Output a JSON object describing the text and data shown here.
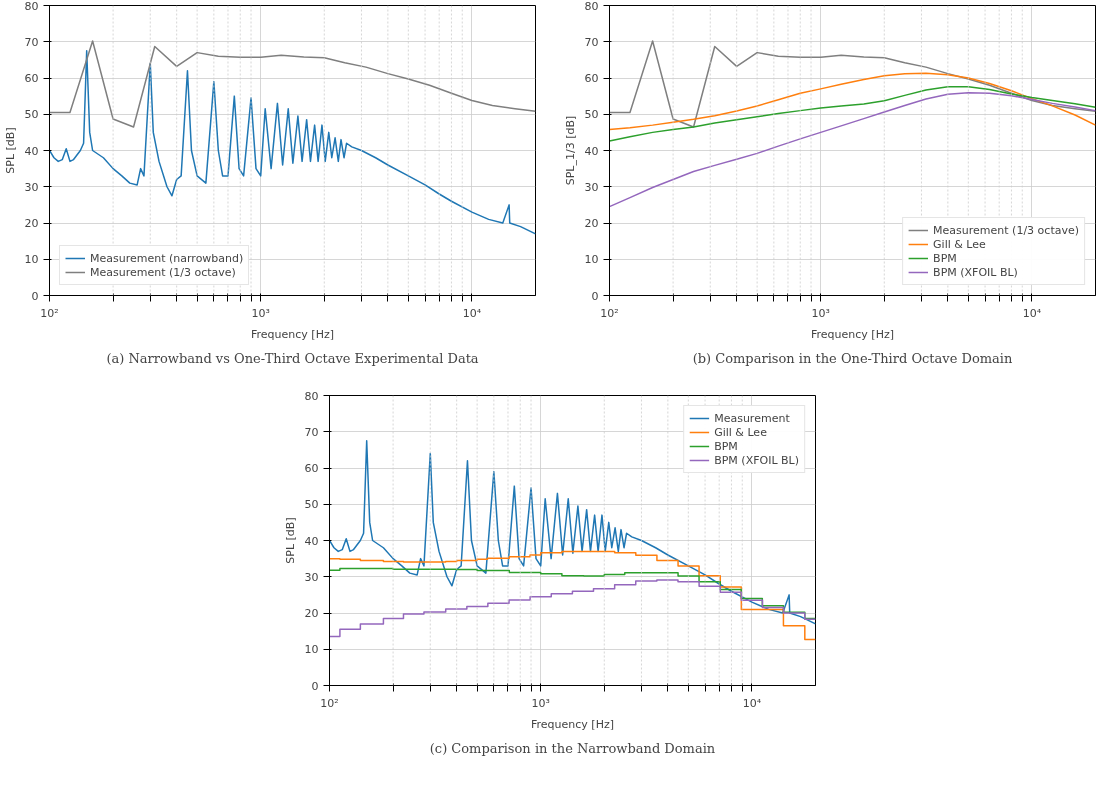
{
  "chart_data": [
    {
      "type": "line",
      "title": "(a) Narrowband vs One-Third Octave Experimental Data",
      "xlabel": "Frequency [Hz]",
      "ylabel": "SPL [dB]",
      "log": "x",
      "grid": true,
      "legend": "bottom left",
      "xlim": [
        100,
        20000
      ],
      "ylim": [
        0,
        80
      ],
      "xticks": [
        {
          "value": 100,
          "label": "10²"
        },
        {
          "value": 200,
          "label": null
        },
        {
          "value": 300,
          "label": null
        },
        {
          "value": 400,
          "label": null
        },
        {
          "value": 500,
          "label": null
        },
        {
          "value": 600,
          "label": null
        },
        {
          "value": 700,
          "label": null
        },
        {
          "value": 800,
          "label": null
        },
        {
          "value": 900,
          "label": null
        },
        {
          "value": 1000,
          "label": "10³"
        },
        {
          "value": 2000,
          "label": null
        },
        {
          "value": 3000,
          "label": null
        },
        {
          "value": 4000,
          "label": null
        },
        {
          "value": 5000,
          "label": null
        },
        {
          "value": 6000,
          "label": null
        },
        {
          "value": 7000,
          "label": null
        },
        {
          "value": 8000,
          "label": null
        },
        {
          "value": 9000,
          "label": null
        },
        {
          "value": 10000,
          "label": "10⁴"
        }
      ],
      "yticks": [
        0,
        10,
        20,
        30,
        40,
        50,
        60,
        70,
        80
      ],
      "series": [
        {
          "name": "Measurement (narrowband)",
          "color": "#1f77b4",
          "x": [
            100,
            105,
            110,
            115,
            120,
            125,
            130,
            140,
            145,
            150,
            155,
            160,
            180,
            200,
            220,
            240,
            260,
            270,
            280,
            300,
            310,
            330,
            360,
            380,
            400,
            420,
            450,
            470,
            500,
            550,
            600,
            630,
            660,
            700,
            750,
            790,
            830,
            900,
            950,
            1000,
            1050,
            1120,
            1200,
            1270,
            1350,
            1420,
            1500,
            1570,
            1650,
            1720,
            1800,
            1870,
            1950,
            2020,
            2100,
            2170,
            2250,
            2330,
            2400,
            2480,
            2550,
            2700,
            3000,
            3500,
            4000,
            5000,
            6000,
            7000,
            8000,
            10000,
            12000,
            14000,
            15000,
            15100,
            17000,
            20000
          ],
          "values": [
            40,
            38,
            37,
            37.5,
            40.5,
            37,
            37.5,
            40,
            42,
            67.5,
            45,
            40,
            38,
            35,
            33,
            31,
            30.5,
            35,
            33,
            64,
            45,
            37,
            30,
            27.5,
            32,
            33,
            62,
            40,
            33,
            31,
            59,
            40,
            33,
            33,
            55,
            35,
            33,
            54.5,
            35,
            33,
            51.5,
            35,
            53,
            36,
            51.5,
            36.5,
            49.5,
            37,
            48.5,
            37,
            47,
            37,
            47,
            37,
            45,
            38,
            43.5,
            37,
            43,
            38,
            42,
            41,
            40,
            38,
            36,
            33,
            30.5,
            28,
            26,
            23,
            21,
            20,
            25,
            20,
            19,
            17
          ]
        },
        {
          "name": "Measurement (1/3 octave)",
          "color": "#7f7f7f",
          "x": [
            100,
            125,
            160,
            200,
            250,
            315,
            400,
            500,
            630,
            800,
            1000,
            1250,
            1600,
            2000,
            2500,
            3150,
            4000,
            5000,
            6300,
            8000,
            10000,
            12500,
            16000,
            20000
          ],
          "values": [
            50.5,
            50.5,
            70.2,
            48.7,
            46.5,
            68.7,
            63.2,
            67,
            66,
            65.7,
            65.7,
            66.3,
            65.8,
            65.6,
            64.2,
            63,
            61.2,
            59.7,
            58,
            55.8,
            53.8,
            52.4,
            51.5,
            50.8
          ]
        }
      ]
    },
    {
      "type": "line",
      "title": "(b) Comparison in the One-Third Octave Domain",
      "xlabel": "Frequency [Hz]",
      "ylabel": "SPL_1/3 [dB]",
      "log": "x",
      "grid": true,
      "legend": "bottom right",
      "xlim": [
        100,
        20000
      ],
      "ylim": [
        0,
        80
      ],
      "xticks": [
        {
          "value": 100,
          "label": "10²"
        },
        {
          "value": 200,
          "label": null
        },
        {
          "value": 300,
          "label": null
        },
        {
          "value": 400,
          "label": null
        },
        {
          "value": 500,
          "label": null
        },
        {
          "value": 600,
          "label": null
        },
        {
          "value": 700,
          "label": null
        },
        {
          "value": 800,
          "label": null
        },
        {
          "value": 900,
          "label": null
        },
        {
          "value": 1000,
          "label": "10³"
        },
        {
          "value": 2000,
          "label": null
        },
        {
          "value": 3000,
          "label": null
        },
        {
          "value": 4000,
          "label": null
        },
        {
          "value": 5000,
          "label": null
        },
        {
          "value": 6000,
          "label": null
        },
        {
          "value": 7000,
          "label": null
        },
        {
          "value": 8000,
          "label": null
        },
        {
          "value": 9000,
          "label": null
        },
        {
          "value": 10000,
          "label": "10⁴"
        }
      ],
      "yticks": [
        0,
        10,
        20,
        30,
        40,
        50,
        60,
        70,
        80
      ],
      "x": [
        100,
        125,
        160,
        200,
        250,
        315,
        400,
        500,
        630,
        800,
        1000,
        1250,
        1600,
        2000,
        2500,
        3150,
        4000,
        5000,
        6300,
        8000,
        10000,
        12500,
        16000,
        20000
      ],
      "series": [
        {
          "name": "Measurement (1/3 octave)",
          "color": "#7f7f7f",
          "values": [
            50.5,
            50.5,
            70.2,
            48.7,
            46.5,
            68.7,
            63.2,
            67,
            66,
            65.7,
            65.7,
            66.3,
            65.8,
            65.6,
            64.2,
            63,
            61.2,
            59.7,
            58,
            55.8,
            53.8,
            52.4,
            51.5,
            50.8
          ]
        },
        {
          "name": "Gill & Lee",
          "color": "#ff7f0e",
          "values": [
            45.8,
            46.3,
            47,
            47.8,
            48.6,
            49.6,
            50.9,
            52.3,
            54,
            55.8,
            57,
            58.3,
            59.6,
            60.6,
            61.2,
            61.3,
            60.9,
            60,
            58.5,
            56.5,
            54.3,
            52.3,
            49.8,
            47
          ]
        },
        {
          "name": "BPM",
          "color": "#2ca02c",
          "values": [
            42.6,
            43.8,
            45,
            45.8,
            46.5,
            47.6,
            48.5,
            49.3,
            50.2,
            51,
            51.7,
            52.3,
            52.8,
            53.7,
            55.2,
            56.7,
            57.6,
            57.6,
            56.8,
            55.6,
            54.6,
            53.8,
            52.9,
            51.9
          ]
        },
        {
          "name": "BPM (XFOIL BL)",
          "color": "#9467bd",
          "values": [
            24.5,
            27,
            29.8,
            32,
            34.2,
            35.9,
            37.6,
            39.2,
            41.2,
            43.2,
            45,
            46.8,
            48.8,
            50.6,
            52.4,
            54.2,
            55.5,
            55.9,
            55.8,
            55.1,
            54.1,
            53,
            52,
            51
          ]
        }
      ]
    },
    {
      "type": "line",
      "title": "(c) Comparison in the Narrowband Domain",
      "xlabel": "Frequency [Hz]",
      "ylabel": "SPL [dB]",
      "log": "x",
      "grid": true,
      "legend": "top right",
      "xlim": [
        100,
        20000
      ],
      "ylim": [
        0,
        80
      ],
      "xticks": [
        {
          "value": 100,
          "label": "10²"
        },
        {
          "value": 200,
          "label": null
        },
        {
          "value": 300,
          "label": null
        },
        {
          "value": 400,
          "label": null
        },
        {
          "value": 500,
          "label": null
        },
        {
          "value": 600,
          "label": null
        },
        {
          "value": 700,
          "label": null
        },
        {
          "value": 800,
          "label": null
        },
        {
          "value": 900,
          "label": null
        },
        {
          "value": 1000,
          "label": "10³"
        },
        {
          "value": 2000,
          "label": null
        },
        {
          "value": 3000,
          "label": null
        },
        {
          "value": 4000,
          "label": null
        },
        {
          "value": 5000,
          "label": null
        },
        {
          "value": 6000,
          "label": null
        },
        {
          "value": 7000,
          "label": null
        },
        {
          "value": 8000,
          "label": null
        },
        {
          "value": 9000,
          "label": null
        },
        {
          "value": 10000,
          "label": "10⁴"
        }
      ],
      "yticks": [
        0,
        10,
        20,
        30,
        40,
        50,
        60,
        70,
        80
      ],
      "series": [
        {
          "name": "Measurement",
          "color": "#1f77b4",
          "x": [
            100,
            105,
            110,
            115,
            120,
            125,
            130,
            140,
            145,
            150,
            155,
            160,
            180,
            200,
            220,
            240,
            260,
            270,
            280,
            300,
            310,
            330,
            360,
            380,
            400,
            420,
            450,
            470,
            500,
            550,
            600,
            630,
            660,
            700,
            750,
            790,
            830,
            900,
            950,
            1000,
            1050,
            1120,
            1200,
            1270,
            1350,
            1420,
            1500,
            1570,
            1650,
            1720,
            1800,
            1870,
            1950,
            2020,
            2100,
            2170,
            2250,
            2330,
            2400,
            2480,
            2550,
            2700,
            3000,
            3500,
            4000,
            5000,
            6000,
            7000,
            8000,
            10000,
            12000,
            14000,
            15000,
            15100,
            17000,
            20000
          ],
          "values": [
            40,
            38,
            37,
            37.5,
            40.5,
            37,
            37.5,
            40,
            42,
            67.5,
            45,
            40,
            38,
            35,
            33,
            31,
            30.5,
            35,
            33,
            64,
            45,
            37,
            30,
            27.5,
            32,
            33,
            62,
            40,
            33,
            31,
            59,
            40,
            33,
            33,
            55,
            35,
            33,
            54.5,
            35,
            33,
            51.5,
            35,
            53,
            36,
            51.5,
            36.5,
            49.5,
            37,
            48.5,
            37,
            47,
            37,
            47,
            37,
            45,
            38,
            43.5,
            37,
            43,
            38,
            42,
            41,
            40,
            38,
            36,
            33,
            30.5,
            28,
            26,
            23,
            21,
            20,
            25,
            20,
            19,
            17
          ]
        },
        {
          "name": "Gill & Lee",
          "color": "#ff7f0e",
          "type": "step",
          "x": [
            100,
            112,
            140,
            180,
            224,
            355,
            400,
            500,
            560,
            710,
            890,
            1000,
            1260,
            1600,
            2240,
            2820,
            3550,
            4470,
            5620,
            7080,
            8910,
            11200,
            14100,
            17800,
            20000
          ],
          "values": [
            35,
            34.8,
            34.5,
            34.2,
            34.1,
            34.2,
            34.5,
            34.8,
            35.1,
            35.5,
            36,
            36.6,
            37,
            37,
            36.6,
            35.9,
            34.5,
            33,
            30.3,
            27.2,
            21,
            21,
            16.5,
            12.7,
            12.7
          ]
        },
        {
          "name": "BPM",
          "color": "#2ca02c",
          "type": "step",
          "x": [
            100,
            112,
            200,
            400,
            500,
            710,
            1000,
            1260,
            1600,
            2000,
            2500,
            3550,
            4470,
            5620,
            7080,
            8910,
            11200,
            14100,
            17800,
            20000
          ],
          "values": [
            31.8,
            32.3,
            32.1,
            32,
            31.7,
            31.2,
            30.8,
            30.3,
            30.2,
            30.6,
            31.1,
            31.1,
            30.2,
            28.6,
            26.5,
            24,
            22,
            20.2,
            18.5,
            18.5
          ]
        },
        {
          "name": "BPM (XFOIL BL)",
          "color": "#9467bd",
          "type": "step",
          "x": [
            100,
            112,
            140,
            180,
            224,
            280,
            355,
            447,
            562,
            708,
            891,
            1122,
            1413,
            1778,
            2239,
            2818,
            3548,
            4467,
            5623,
            7079,
            8913,
            11220,
            14125,
            17783,
            20000
          ],
          "values": [
            13.5,
            15.5,
            17,
            18.5,
            19.7,
            20.3,
            21.1,
            21.8,
            22.7,
            23.6,
            24.5,
            25.3,
            26,
            26.7,
            27.8,
            28.8,
            29.1,
            28.6,
            27.4,
            25.7,
            23.5,
            21.5,
            20,
            18.3,
            18.3
          ]
        }
      ]
    }
  ]
}
